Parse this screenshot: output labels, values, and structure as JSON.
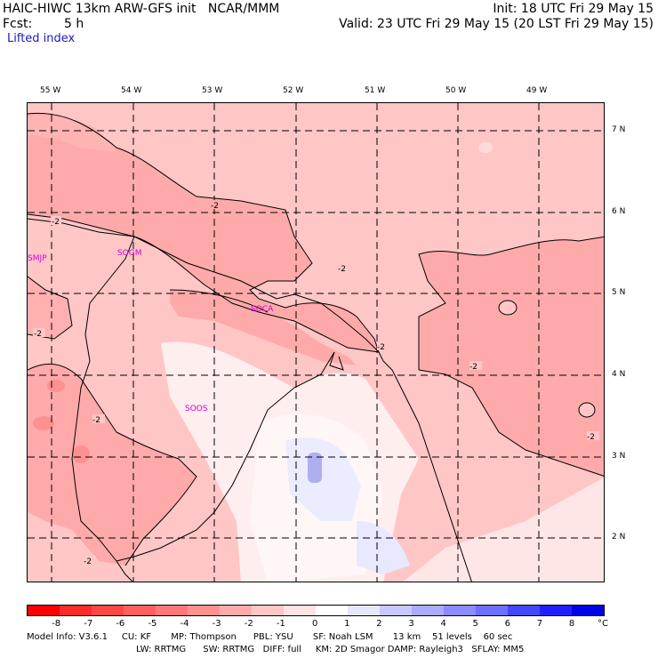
{
  "header": {
    "model": "HAIC-HIWC 13km ARW-GFS init   NCAR/MMM",
    "init": "Init: 18 UTC Fri 29 May 15",
    "fcst_label": "Fcst:",
    "fcst_value": "5 h",
    "valid": "Valid: 23 UTC Fri 29 May 15 (20 LST Fri 29 May 15)",
    "field": "Lifted index"
  },
  "longitude_labels": [
    "55 W",
    "54 W",
    "53 W",
    "52 W",
    "51 W",
    "50 W",
    "49 W"
  ],
  "latitude_labels": [
    "7 N",
    "6 N",
    "5 N",
    "4 N",
    "3 N",
    "2 N"
  ],
  "stations": [
    "SMJP",
    "SOGM",
    "SOCA",
    "SOOS"
  ],
  "contour_labels": [
    "-2",
    "-2",
    "-2",
    "-2",
    "-2",
    "-2",
    "-2",
    "-2",
    "-2",
    "-2",
    "-2"
  ],
  "colorbar": {
    "unit": "°C",
    "ticks": [
      "-8",
      "-7",
      "-6",
      "-5",
      "-4",
      "-3",
      "-2",
      "-1",
      "0",
      "1",
      "2",
      "3",
      "4",
      "5",
      "6",
      "7",
      "8"
    ],
    "colors": [
      "#ff0000",
      "#ff2a2a",
      "#ff4646",
      "#ff5f5f",
      "#ff7878",
      "#ff9090",
      "#ffaaaa",
      "#ffc6c6",
      "#ffe2e2",
      "#ffffff",
      "#e6e6ff",
      "#c8c8ff",
      "#aaaaff",
      "#8c8cff",
      "#6e6eff",
      "#4646ff",
      "#2020ff",
      "#0000e6"
    ]
  },
  "footer": {
    "line1": "Model Info: V3.6.1     CU: KF       MP: Thompson      PBL: YSU       SF: Noah LSM       13 km    51 levels    60 sec",
    "line2": "LW: RRTMG      SW: RRTMG   DIFF: full     KM: 2D Smagor DAMP: Rayleigh3   SFLAY: MM5"
  }
}
